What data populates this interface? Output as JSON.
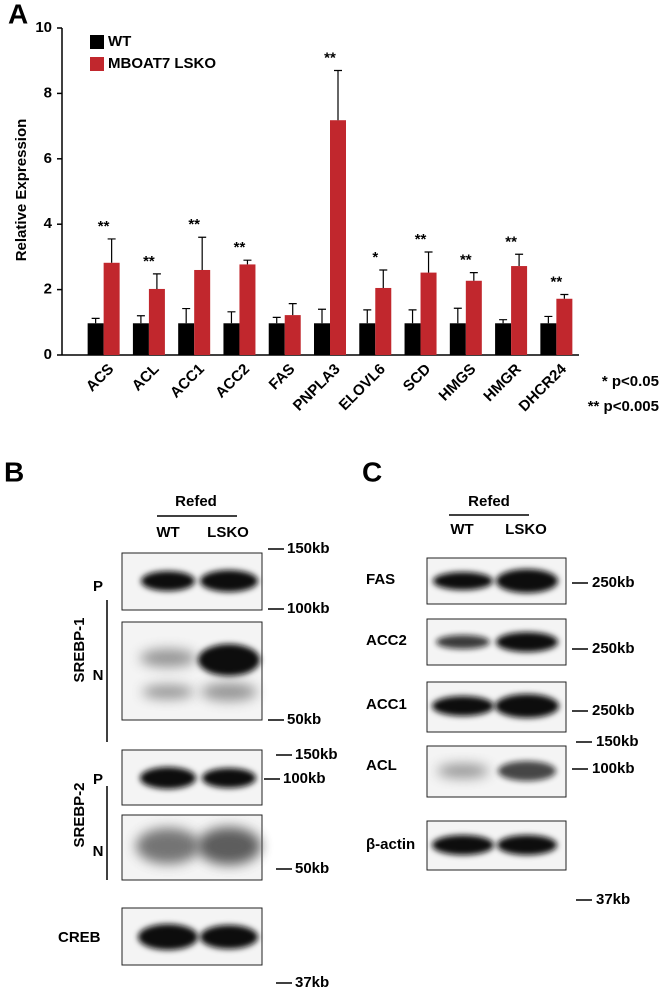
{
  "chart_data": {
    "type": "bar",
    "panel_label": "A",
    "ylabel": "Relative Expression",
    "categories": [
      "ACS",
      "ACL",
      "ACC1",
      "ACC2",
      "FAS",
      "PNPLA3",
      "ELOVL6",
      "SCD",
      "HMGS",
      "HMGR",
      "DHCR24"
    ],
    "series": [
      {
        "name": "WT",
        "color": "#000000",
        "values": [
          0.97,
          0.97,
          0.97,
          0.97,
          0.97,
          0.97,
          0.97,
          0.97,
          0.97,
          0.97,
          0.97
        ],
        "errors": [
          0.15,
          0.23,
          0.45,
          0.35,
          0.18,
          0.43,
          0.41,
          0.41,
          0.46,
          0.11,
          0.21
        ]
      },
      {
        "name": "MBOAT7 LSKO",
        "color": "#c1272d",
        "values": [
          2.82,
          2.02,
          2.6,
          2.77,
          1.22,
          7.18,
          2.05,
          2.52,
          2.27,
          2.72,
          1.72
        ],
        "errors": [
          0.73,
          0.46,
          1.0,
          0.13,
          0.35,
          1.52,
          0.55,
          0.63,
          0.25,
          0.36,
          0.13
        ]
      }
    ],
    "significance": [
      "**",
      "**",
      "**",
      "**",
      null,
      "**",
      "*",
      "**",
      "**",
      "**",
      "**"
    ],
    "notes": [
      "* p<0.05",
      "** p<0.005"
    ],
    "ylim": [
      0,
      10
    ],
    "yticks": [
      0,
      2,
      4,
      6,
      8,
      10
    ],
    "legend": "upper left"
  },
  "panel_b": {
    "label": "B",
    "condition": "Refed",
    "lanes": [
      "WT",
      "LSKO"
    ],
    "groups": [
      {
        "name": "SREBP-1",
        "rows": [
          "P",
          "N"
        ]
      },
      {
        "name": "SREBP-2",
        "rows": [
          "P",
          "N"
        ]
      }
    ],
    "loading": "CREB",
    "markers": [
      "150kb",
      "100kb",
      "50kb",
      "150kb",
      "100kb",
      "50kb",
      "37kb"
    ]
  },
  "panel_c": {
    "label": "C",
    "condition": "Refed",
    "lanes": [
      "WT",
      "LSKO"
    ],
    "rows": [
      "FAS",
      "ACC2",
      "ACC1",
      "ACL",
      "β-actin"
    ],
    "markers": [
      "250kb",
      "250kb",
      "250kb",
      "150kb",
      "100kb",
      "37kb"
    ]
  }
}
